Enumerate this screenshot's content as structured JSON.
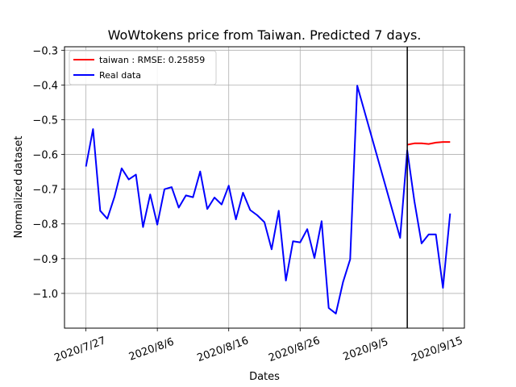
{
  "chart_data": {
    "type": "line",
    "title": "WoWtokens price from Taiwan. Predicted 7 days.",
    "xlabel": "Dates",
    "ylabel": "Normalized dataset",
    "xlim": [
      "2020-07-24",
      "2020-09-18"
    ],
    "ylim": [
      -1.1,
      -0.29
    ],
    "x_ticks": [
      {
        "date": "2020-07-27",
        "label": "2020/7/27"
      },
      {
        "date": "2020-08-06",
        "label": "2020/8/6"
      },
      {
        "date": "2020-08-16",
        "label": "2020/8/16"
      },
      {
        "date": "2020-08-26",
        "label": "2020/8/26"
      },
      {
        "date": "2020-09-05",
        "label": "2020/9/5"
      },
      {
        "date": "2020-09-15",
        "label": "2020/9/15"
      }
    ],
    "y_ticks": [
      {
        "value": -0.3,
        "label": "−0.3"
      },
      {
        "value": -0.4,
        "label": "−0.4"
      },
      {
        "value": -0.5,
        "label": "−0.5"
      },
      {
        "value": -0.6,
        "label": "−0.6"
      },
      {
        "value": -0.7,
        "label": "−0.7"
      },
      {
        "value": -0.8,
        "label": "−0.8"
      },
      {
        "value": -0.9,
        "label": "−0.9"
      },
      {
        "value": -1.0,
        "label": "−1.0"
      }
    ],
    "grid": true,
    "legend_position": "top-left",
    "vline_date": "2020-09-10",
    "series": [
      {
        "name": "taiwan : RMSE: 0.25859",
        "color": "#ff0000",
        "points": [
          [
            "2020-09-10",
            -0.572
          ],
          [
            "2020-09-11",
            -0.568
          ],
          [
            "2020-09-12",
            -0.568
          ],
          [
            "2020-09-13",
            -0.57
          ],
          [
            "2020-09-14",
            -0.566
          ],
          [
            "2020-09-15",
            -0.564
          ],
          [
            "2020-09-16",
            -0.564
          ]
        ]
      },
      {
        "name": "Real data",
        "color": "#0000ff",
        "points": [
          [
            "2020-07-27",
            -0.635
          ],
          [
            "2020-07-28",
            -0.527
          ],
          [
            "2020-07-29",
            -0.762
          ],
          [
            "2020-07-30",
            -0.785
          ],
          [
            "2020-07-31",
            -0.722
          ],
          [
            "2020-08-01",
            -0.64
          ],
          [
            "2020-08-02",
            -0.672
          ],
          [
            "2020-08-03",
            -0.658
          ],
          [
            "2020-08-04",
            -0.809
          ],
          [
            "2020-08-05",
            -0.715
          ],
          [
            "2020-08-06",
            -0.802
          ],
          [
            "2020-08-07",
            -0.7
          ],
          [
            "2020-08-08",
            -0.694
          ],
          [
            "2020-08-09",
            -0.753
          ],
          [
            "2020-08-10",
            -0.718
          ],
          [
            "2020-08-11",
            -0.723
          ],
          [
            "2020-08-12",
            -0.649
          ],
          [
            "2020-08-13",
            -0.757
          ],
          [
            "2020-08-14",
            -0.724
          ],
          [
            "2020-08-15",
            -0.744
          ],
          [
            "2020-08-16",
            -0.69
          ],
          [
            "2020-08-17",
            -0.787
          ],
          [
            "2020-08-18",
            -0.71
          ],
          [
            "2020-08-19",
            -0.76
          ],
          [
            "2020-08-20",
            -0.775
          ],
          [
            "2020-08-21",
            -0.795
          ],
          [
            "2020-08-22",
            -0.873
          ],
          [
            "2020-08-23",
            -0.762
          ],
          [
            "2020-08-24",
            -0.963
          ],
          [
            "2020-08-25",
            -0.85
          ],
          [
            "2020-08-26",
            -0.853
          ],
          [
            "2020-08-27",
            -0.815
          ],
          [
            "2020-08-28",
            -0.898
          ],
          [
            "2020-08-29",
            -0.792
          ],
          [
            "2020-08-30",
            -1.042
          ],
          [
            "2020-08-31",
            -1.058
          ],
          [
            "2020-09-01",
            -0.968
          ],
          [
            "2020-09-02",
            -0.902
          ],
          [
            "2020-09-03",
            -0.402
          ],
          [
            "2020-09-09",
            -0.84
          ],
          [
            "2020-09-10",
            -0.588
          ],
          [
            "2020-09-11",
            -0.735
          ],
          [
            "2020-09-12",
            -0.856
          ],
          [
            "2020-09-13",
            -0.83
          ],
          [
            "2020-09-14",
            -0.83
          ],
          [
            "2020-09-15",
            -0.984
          ],
          [
            "2020-09-16",
            -0.77
          ]
        ]
      }
    ]
  }
}
